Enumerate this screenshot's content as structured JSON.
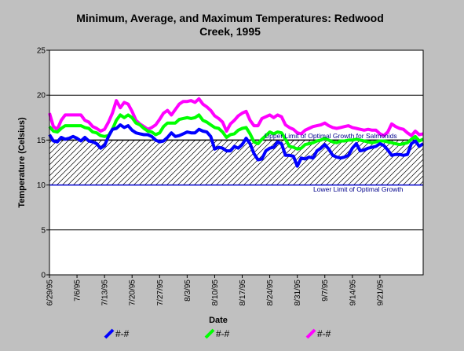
{
  "chart_data": {
    "type": "line",
    "title": [
      "Minimum, Average, and Maximum Temperatures:  Redwood",
      "Creek, 1995"
    ],
    "xlabel": "Date",
    "ylabel": "Temperature (Celsius)",
    "ylim": [
      0,
      25
    ],
    "yticks": [
      "0",
      "5",
      "10",
      "15",
      "20",
      "25"
    ],
    "xlim": [
      "6/29/95",
      "10/2/95"
    ],
    "xticks": [
      "6/29/95",
      "7/6/95",
      "7/13/95",
      "7/20/95",
      "7/27/95",
      "8/3/95",
      "8/10/95",
      "8/17/95",
      "8/24/95",
      "8/31/95",
      "9/7/95",
      "9/14/95",
      "9/21/95"
    ],
    "grid": "horizontal",
    "annotations": {
      "upper": "Upper Limit of Optimal Growth for Salmonids",
      "lower": "Lower Limit of Optimal Growth"
    },
    "optimal_band": [
      10,
      15
    ],
    "series": [
      {
        "name": "#-#",
        "color": "#0000ff",
        "values": [
          15.6,
          14.9,
          14.8,
          15.3,
          15.1,
          15.2,
          15.4,
          15.2,
          14.9,
          15.3,
          14.9,
          14.8,
          14.6,
          14.1,
          14.4,
          15.4,
          16.2,
          16.3,
          16.7,
          16.4,
          16.6,
          16.1,
          15.8,
          15.7,
          15.6,
          15.6,
          15.4,
          15.0,
          14.8,
          14.9,
          15.3,
          15.8,
          15.4,
          15.5,
          15.7,
          15.9,
          15.8,
          15.8,
          16.2,
          16.0,
          15.9,
          15.4,
          14.0,
          14.2,
          14.1,
          13.8,
          13.8,
          14.3,
          14.1,
          14.5,
          15.2,
          14.6,
          13.5,
          12.8,
          12.9,
          13.8,
          14.1,
          14.2,
          14.8,
          14.6,
          13.3,
          13.3,
          13.2,
          12.1,
          13.0,
          12.9,
          13.1,
          13.0,
          13.8,
          14.1,
          14.5,
          14.0,
          13.3,
          13.1,
          13.0,
          13.1,
          13.3,
          14.1,
          14.6,
          13.8,
          13.9,
          14.1,
          14.2,
          14.3,
          14.6,
          14.4,
          13.9,
          13.3,
          13.4,
          13.4,
          13.3,
          13.4,
          14.6,
          14.9,
          14.3,
          14.6
        ]
      },
      {
        "name": "#-#",
        "color": "#00ff00",
        "values": [
          16.5,
          16.0,
          15.9,
          16.3,
          16.6,
          16.6,
          16.6,
          16.6,
          16.6,
          16.4,
          16.3,
          15.9,
          15.8,
          15.5,
          15.4,
          15.5,
          16.2,
          17.2,
          17.8,
          17.5,
          17.8,
          17.5,
          16.9,
          16.7,
          16.3,
          16.0,
          15.9,
          15.6,
          15.8,
          16.5,
          16.9,
          16.9,
          16.9,
          17.3,
          17.4,
          17.5,
          17.4,
          17.5,
          17.8,
          17.2,
          17.0,
          16.7,
          16.4,
          16.3,
          15.9,
          15.3,
          15.6,
          15.7,
          16.1,
          16.3,
          16.4,
          15.7,
          14.8,
          14.6,
          15.1,
          15.5,
          15.9,
          15.7,
          15.9,
          15.8,
          15.1,
          14.3,
          14.2,
          14.0,
          14.1,
          14.5,
          14.6,
          14.7,
          14.9,
          15.0,
          15.2,
          15.0,
          14.8,
          14.7,
          14.9,
          14.9,
          15.0,
          15.0,
          15.1,
          15.0,
          14.9,
          14.8,
          14.7,
          14.8,
          14.9,
          14.9,
          14.8,
          14.7,
          14.6,
          14.5,
          14.6,
          14.7,
          15.1,
          15.4,
          14.9,
          15.1
        ]
      },
      {
        "name": "#-#",
        "color": "#ff00ff",
        "values": [
          18.0,
          16.5,
          16.2,
          17.2,
          17.8,
          17.8,
          17.8,
          17.8,
          17.8,
          17.2,
          17.0,
          16.5,
          16.3,
          16.0,
          16.2,
          17.0,
          18.0,
          19.4,
          18.6,
          19.2,
          19.0,
          18.2,
          17.2,
          16.8,
          16.5,
          16.2,
          16.4,
          16.7,
          17.3,
          18.0,
          18.3,
          17.8,
          18.4,
          19.0,
          19.3,
          19.3,
          19.4,
          19.2,
          19.6,
          19.0,
          18.7,
          18.3,
          17.7,
          17.4,
          17.0,
          16.0,
          16.8,
          17.2,
          17.7,
          18.0,
          18.2,
          17.2,
          16.6,
          16.6,
          17.4,
          17.6,
          17.8,
          17.5,
          17.8,
          17.6,
          16.7,
          16.4,
          16.2,
          15.8,
          15.7,
          16.1,
          16.3,
          16.5,
          16.6,
          16.7,
          16.9,
          16.6,
          16.4,
          16.3,
          16.4,
          16.5,
          16.6,
          16.4,
          16.3,
          16.2,
          16.1,
          16.2,
          16.1,
          16.1,
          15.7,
          15.5,
          15.9,
          16.8,
          16.5,
          16.3,
          16.2,
          15.8,
          15.5,
          16.0,
          15.6,
          15.7
        ]
      }
    ]
  }
}
